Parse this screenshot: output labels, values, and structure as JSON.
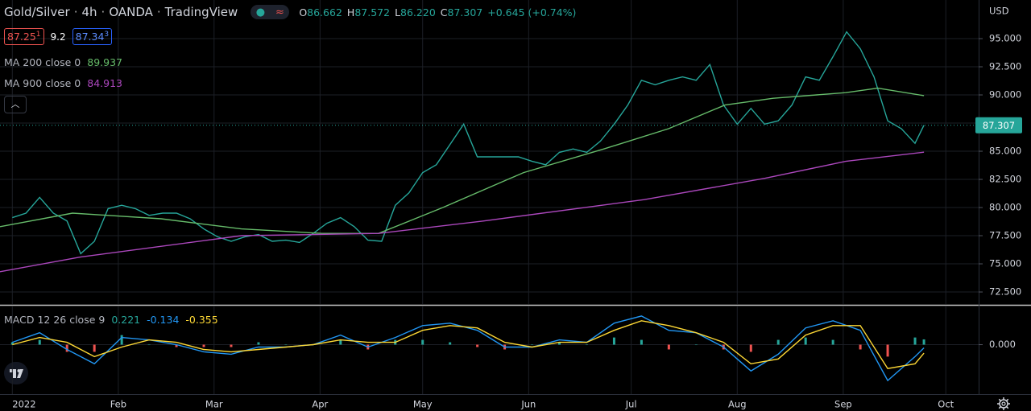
{
  "header": {
    "symbol": "Gold/Silver",
    "interval": "4h",
    "exchange": "OANDA",
    "source": "TradingView",
    "ohlc": [
      {
        "label": "O",
        "value": "86.662"
      },
      {
        "label": "H",
        "value": "87.572"
      },
      {
        "label": "L",
        "value": "86.220"
      },
      {
        "label": "C",
        "value": "87.307"
      }
    ],
    "change": "+0.645 (+0.74%)",
    "bid": {
      "price": "87.25",
      "digit": "1"
    },
    "spread": "9.2",
    "ask": {
      "price": "87.34",
      "digit": "3"
    },
    "currency": "USD"
  },
  "chart_data": [
    {
      "type": "line",
      "grid": true,
      "xlim": [
        -3.6,
        282.6
      ],
      "xticks": [
        {
          "value": 0,
          "label": "2022"
        },
        {
          "value": 31,
          "label": "Feb"
        },
        {
          "value": 59,
          "label": "Mar"
        },
        {
          "value": 90,
          "label": "Apr"
        },
        {
          "value": 120,
          "label": "May"
        },
        {
          "value": 151,
          "label": "Jun"
        },
        {
          "value": 181,
          "label": "Jul"
        },
        {
          "value": 212,
          "label": "Aug"
        },
        {
          "value": 243,
          "label": "Sep"
        },
        {
          "value": 273,
          "label": "Oct"
        }
      ],
      "ylim": [
        71.43,
        98.43
      ],
      "yticks": [
        {
          "value": 95,
          "label": "95.000"
        },
        {
          "value": 92.5,
          "label": "92.500"
        },
        {
          "value": 90,
          "label": "90.000"
        },
        {
          "value": 87.5,
          "label": "87.500"
        },
        {
          "value": 85,
          "label": "85.000"
        },
        {
          "value": 82.5,
          "label": "82.500"
        },
        {
          "value": 80,
          "label": "80.000"
        },
        {
          "value": 77.5,
          "label": "77.500"
        },
        {
          "value": 75,
          "label": "75.000"
        },
        {
          "value": 72.5,
          "label": "72.500"
        }
      ],
      "series": [
        {
          "color": "#26a69a",
          "x": [
            0,
            4,
            8,
            12,
            16,
            20,
            24,
            28,
            32,
            36,
            40,
            44,
            48,
            52,
            56,
            60,
            64,
            68,
            72,
            76,
            80,
            84,
            88,
            92,
            96,
            100,
            104,
            108,
            112,
            116,
            120,
            124,
            128,
            132,
            136,
            140,
            144,
            148,
            152,
            156,
            160,
            164,
            168,
            172,
            176,
            180,
            184,
            188,
            192,
            196,
            200,
            204,
            208,
            212,
            216,
            220,
            224,
            228,
            232,
            236,
            240,
            244,
            248,
            252,
            256,
            260,
            264,
            266.6
          ],
          "values": [
            79.1,
            79.5,
            80.9,
            79.5,
            78.8,
            75.9,
            77.0,
            79.9,
            80.2,
            79.9,
            79.3,
            79.5,
            79.5,
            79.0,
            78.1,
            77.4,
            77.0,
            77.4,
            77.6,
            77.0,
            77.1,
            76.9,
            77.7,
            78.6,
            79.1,
            78.3,
            77.1,
            77.0,
            80.2,
            81.3,
            83.1,
            83.8,
            85.6,
            87.4,
            84.5,
            84.5,
            84.5,
            84.5,
            84.1,
            83.8,
            84.9,
            85.2,
            84.9,
            85.9,
            87.4,
            89.1,
            91.3,
            90.9,
            91.3,
            91.6,
            91.3,
            92.7,
            89.1,
            87.4,
            88.8,
            87.4,
            87.7,
            89.1,
            91.6,
            91.3,
            93.4,
            95.6,
            94.1,
            91.6,
            87.7,
            87.0,
            85.7,
            87.307
          ]
        },
        {
          "name": "MA 200 close 0",
          "legend_value": "89.937",
          "color": "#66bb6a",
          "x": [
            -3.6,
            17.6,
            43.5,
            67.0,
            90.6,
            107.1,
            125.9,
            149.5,
            173.0,
            191.9,
            208.4,
            222.5,
            243.7,
            253.1,
            266.6
          ],
          "values": [
            78.3,
            79.5,
            79.0,
            78.1,
            77.7,
            77.7,
            80.0,
            83.1,
            85.2,
            87.0,
            89.1,
            89.7,
            90.2,
            90.6,
            89.937
          ]
        },
        {
          "name": "MA 900 close 0",
          "legend_value": "84.913",
          "color": "#ab47bc",
          "x": [
            -3.6,
            19.9,
            67.0,
            107.1,
            137.7,
            184.8,
            220.2,
            243.7,
            266.6
          ],
          "values": [
            74.3,
            75.6,
            77.5,
            77.7,
            78.8,
            80.7,
            82.6,
            84.1,
            84.913
          ]
        }
      ]
    },
    {
      "type": "line",
      "grid": true,
      "title": "MACD 12 26 close 9",
      "xlim": [
        -3.6,
        282.6
      ],
      "ylim": [
        -2.07,
        1.6
      ],
      "yticks": [
        {
          "value": 0,
          "label": "0.000"
        }
      ],
      "series": [
        {
          "type": "bar",
          "legend_value": "0.221",
          "up_color": "#26a69a",
          "down_color": "#ef5350",
          "color": "#26a69a",
          "x": [
            0,
            8,
            16,
            24,
            32,
            40,
            48,
            56,
            64,
            72,
            80,
            88,
            96,
            104,
            112,
            120,
            128,
            136,
            144,
            152,
            160,
            168,
            176,
            184,
            192,
            200,
            208,
            216,
            224,
            232,
            240,
            248,
            256,
            264,
            266.6
          ],
          "values": [
            0.1,
            0.2,
            -0.3,
            -0.3,
            0.4,
            0.0,
            -0.1,
            -0.1,
            -0.1,
            0.1,
            0.0,
            0.0,
            0.2,
            -0.2,
            0.2,
            0.2,
            0.1,
            -0.1,
            -0.2,
            0.0,
            0.1,
            0.0,
            0.3,
            0.2,
            -0.2,
            0.0,
            -0.2,
            -0.3,
            0.2,
            0.3,
            0.2,
            -0.2,
            -0.5,
            0.3,
            0.221
          ]
        },
        {
          "type": "line",
          "legend_value": "-0.134",
          "color": "#2196f3",
          "x": [
            0,
            8,
            16,
            24,
            32,
            40,
            48,
            56,
            64,
            72,
            80,
            88,
            96,
            104,
            112,
            120,
            128,
            136,
            144,
            152,
            160,
            168,
            176,
            184,
            192,
            200,
            208,
            216,
            224,
            232,
            240,
            248,
            256,
            264,
            266.6
          ],
          "values": [
            0.1,
            0.5,
            -0.2,
            -0.8,
            0.3,
            0.2,
            0.0,
            -0.3,
            -0.4,
            -0.1,
            -0.1,
            0.0,
            0.4,
            -0.1,
            0.3,
            0.8,
            0.9,
            0.6,
            -0.1,
            -0.1,
            0.2,
            0.1,
            0.9,
            1.2,
            0.6,
            0.5,
            -0.1,
            -1.1,
            -0.4,
            0.7,
            1.0,
            0.6,
            -1.5,
            -0.5,
            -0.134
          ]
        },
        {
          "type": "line",
          "legend_value": "-0.355",
          "color": "#fdd835",
          "x": [
            0,
            8,
            16,
            24,
            32,
            40,
            48,
            56,
            64,
            72,
            80,
            88,
            96,
            104,
            112,
            120,
            128,
            136,
            144,
            152,
            160,
            168,
            176,
            184,
            192,
            200,
            208,
            216,
            224,
            232,
            240,
            248,
            256,
            264,
            266.6
          ],
          "values": [
            0.0,
            0.3,
            0.1,
            -0.5,
            -0.1,
            0.2,
            0.1,
            -0.2,
            -0.3,
            -0.2,
            -0.1,
            0.0,
            0.2,
            0.1,
            0.1,
            0.6,
            0.8,
            0.7,
            0.1,
            -0.1,
            0.1,
            0.1,
            0.6,
            1.0,
            0.8,
            0.5,
            0.1,
            -0.8,
            -0.6,
            0.4,
            0.8,
            0.8,
            -1.0,
            -0.8,
            -0.355
          ]
        }
      ]
    }
  ]
}
